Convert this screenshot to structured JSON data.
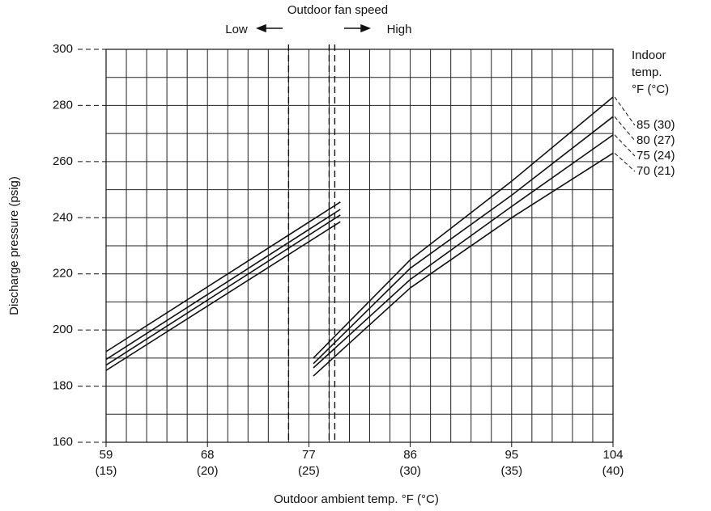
{
  "chart_data": {
    "type": "line",
    "title": "Outdoor fan speed",
    "annotations": [
      "Low",
      "High"
    ],
    "x_label": "Outdoor ambient temp. °F (°C)",
    "y_label": "Discharge pressure (psig)",
    "legend_title": [
      "Indoor",
      "temp.",
      "°F (°C)"
    ],
    "x": [
      59,
      79.8,
      null,
      77.4,
      86,
      95,
      104
    ],
    "series": [
      {
        "name": "85 (30)",
        "color": "#111111",
        "values": [
          192.3,
          245.6,
          null,
          190,
          225,
          253,
          283
        ]
      },
      {
        "name": "80 (27)",
        "color": "#111111",
        "values": [
          189.5,
          243,
          null,
          188,
          222,
          248,
          276
        ]
      },
      {
        "name": "75 (24)",
        "color": "#111111",
        "values": [
          187.5,
          241,
          null,
          186.5,
          218,
          244,
          269.5
        ]
      },
      {
        "name": "70 (21)",
        "color": "#111111",
        "values": [
          185.6,
          238.6,
          null,
          183.6,
          215,
          240,
          263
        ]
      }
    ],
    "xlim": [
      59,
      104
    ],
    "ylim": [
      160,
      300
    ],
    "xticks": [
      59,
      68,
      77,
      86,
      95,
      104
    ],
    "xtick_celsius": [
      "(15)",
      "(20)",
      "(25)",
      "(30)",
      "(35)",
      "(40)"
    ],
    "yticks": [
      160,
      180,
      200,
      220,
      240,
      260,
      280,
      300
    ],
    "xgrid_step": 1.8,
    "ygrid_step": 10,
    "fan_switch_x": [
      75.2,
      78.8,
      79.3
    ],
    "grid": true,
    "legend": "right"
  }
}
